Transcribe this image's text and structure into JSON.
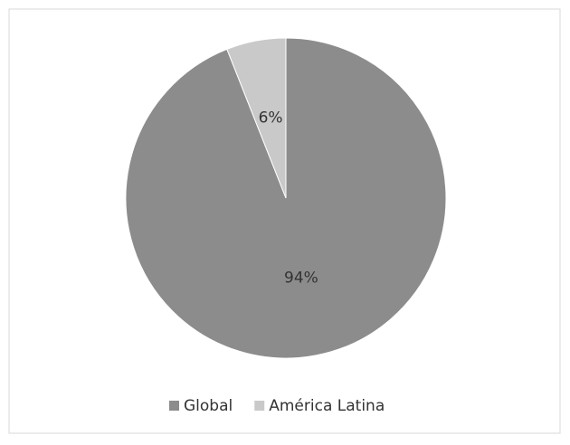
{
  "chart_data": {
    "type": "pie",
    "categories": [
      "Global",
      "América Latina"
    ],
    "values": [
      94,
      6
    ],
    "value_labels": [
      "94%",
      "6%"
    ],
    "colors": [
      "#8c8c8c",
      "#c9c9c9"
    ],
    "legend": "bottom"
  }
}
